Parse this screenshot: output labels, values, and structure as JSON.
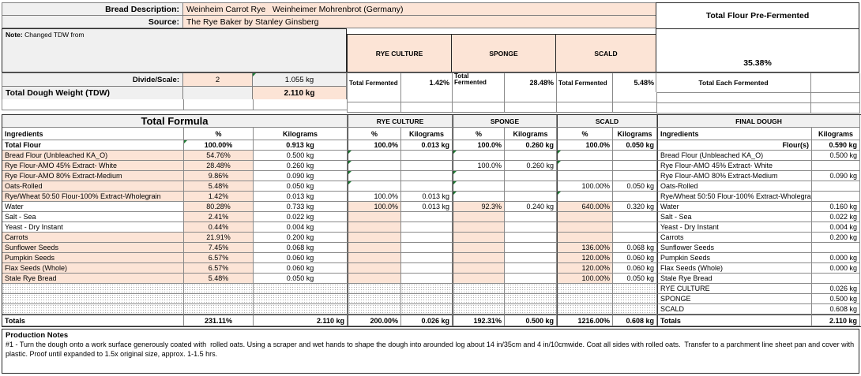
{
  "header": {
    "bread_description_label": "Bread Description:",
    "bread_description": "Weinheim Carrot Rye   Weinheimer Mohrenbrot (Germany)",
    "source_label": "Source:",
    "source": "The Rye Baker by Stanley Ginsberg",
    "note_label": "Note:",
    "note_text": " Changed TDW from",
    "total_flour_prefermented_label": "Total Flour Pre-Fermented",
    "total_flour_prefermented_value": "35.38%",
    "total_each_fermented_label": "Total Each Fermented",
    "divide_scale_label": "Divide/Scale:",
    "divide_scale_value": "2",
    "divide_scale_kg": "1.055 kg",
    "tdw_label": "Total Dough Weight (TDW)",
    "tdw_value": "2.110 kg"
  },
  "sections": {
    "total_formula": "Total Formula",
    "rye_culture": "RYE CULTURE",
    "sponge": "SPONGE",
    "scald": "SCALD",
    "final_dough": "FINAL DOUGH",
    "total_fermented_label": "Total Fermented",
    "rye_total_fermented": "1.42%",
    "sponge_total_fermented": "28.48%",
    "scald_total_fermented": "5.48%"
  },
  "columns": {
    "ingredients": "Ingredients",
    "pct": "%",
    "kilograms": "Kilograms"
  },
  "colors": {
    "input_fill": "#fce4d6",
    "label_fill": "#f0f0f0",
    "marker_green": "#1e7a33"
  },
  "table": {
    "rows": [
      {
        "key": "total-flour",
        "cells": [
          {
            "v": "Total Flour",
            "b": 1
          },
          {
            "v": "100.00%",
            "b": 1,
            "m": 1
          },
          {
            "v": "0.913 kg",
            "b": 1
          },
          {
            "v": "100.0%",
            "b": 1
          },
          {
            "v": "0.013 kg",
            "b": 1
          },
          {
            "v": "100.0%",
            "b": 1
          },
          {
            "v": "0.260 kg",
            "b": 1
          },
          {
            "v": "100.0%",
            "b": 1
          },
          {
            "v": "0.050 kg",
            "b": 1
          },
          {
            "v": "Flour(s)",
            "b": 1,
            "a": "r"
          },
          {
            "v": "0.590 kg",
            "b": 1
          }
        ]
      },
      {
        "key": "bread-flour",
        "cells": [
          {
            "v": "Bread Flour (Unbleached KA_O)",
            "i": 1
          },
          {
            "v": "54.76%",
            "i": 1
          },
          {
            "v": "0.500 kg"
          },
          {
            "m": 1
          },
          {},
          {
            "m": 1
          },
          {},
          {
            "m": 1
          },
          {},
          {
            "v": "Bread Flour (Unbleached KA_O)"
          },
          {
            "v": "0.500 kg"
          }
        ]
      },
      {
        "key": "rye-flour-45",
        "cells": [
          {
            "v": "Rye Flour-AMO 45% Extract- White",
            "i": 1
          },
          {
            "v": "28.48%",
            "i": 1
          },
          {
            "v": "0.260 kg"
          },
          {
            "m": 1
          },
          {},
          {
            "v": "100.0%"
          },
          {
            "v": "0.260 kg"
          },
          {
            "m": 1
          },
          {},
          {
            "v": "Rye Flour-AMO 45% Extract- White"
          },
          {}
        ]
      },
      {
        "key": "rye-flour-80",
        "cells": [
          {
            "v": "Rye Flour-AMO 80% Extract-Medium",
            "i": 1
          },
          {
            "v": "9.86%",
            "i": 1
          },
          {
            "v": "0.090 kg"
          },
          {
            "m": 1
          },
          {},
          {
            "m": 1
          },
          {},
          {},
          {},
          {
            "v": "Rye Flour-AMO 80% Extract-Medium"
          },
          {
            "v": "0.090 kg"
          }
        ]
      },
      {
        "key": "oats-rolled",
        "cells": [
          {
            "v": "Oats-Rolled",
            "i": 1
          },
          {
            "v": "5.48%",
            "i": 1
          },
          {
            "v": "0.050 kg"
          },
          {
            "m": 1
          },
          {},
          {
            "m": 1
          },
          {},
          {
            "v": "100.00%"
          },
          {
            "v": "0.050 kg"
          },
          {
            "v": "Oats-Rolled"
          },
          {}
        ]
      },
      {
        "key": "rye-wheat-5050",
        "cells": [
          {
            "v": "Rye/Wheat 50:50 Flour-100% Extract-Wholegrain",
            "i": 1
          },
          {
            "v": "1.42%",
            "i": 1
          },
          {
            "v": "0.013 kg"
          },
          {
            "v": "100.0%"
          },
          {
            "v": "0.013 kg"
          },
          {
            "m": 1
          },
          {},
          {
            "m": 1
          },
          {},
          {
            "v": "Rye/Wheat 50:50 Flour-100% Extract-Wholegrain"
          },
          {}
        ]
      },
      {
        "key": "water",
        "cells": [
          {
            "v": "Water"
          },
          {
            "v": "80.28%",
            "i": 1
          },
          {
            "v": "0.733 kg"
          },
          {
            "v": "100.0%",
            "i": 1
          },
          {
            "v": "0.013 kg"
          },
          {
            "v": "92.3%",
            "i": 1
          },
          {
            "v": "0.240 kg"
          },
          {
            "v": "640.00%",
            "i": 1
          },
          {
            "v": "0.320 kg"
          },
          {
            "v": "Water"
          },
          {
            "v": "0.160 kg"
          }
        ]
      },
      {
        "key": "salt-sea",
        "cells": [
          {
            "v": "Salt - Sea"
          },
          {
            "v": "2.41%",
            "i": 1
          },
          {
            "v": "0.022 kg"
          },
          {
            "i": 1
          },
          {},
          {
            "i": 1
          },
          {},
          {
            "i": 1
          },
          {},
          {
            "v": "Salt - Sea"
          },
          {
            "v": "0.022 kg"
          }
        ]
      },
      {
        "key": "yeast-dry",
        "cells": [
          {
            "v": "Yeast - Dry Instant"
          },
          {
            "v": "0.44%",
            "i": 1
          },
          {
            "v": "0.004 kg"
          },
          {
            "i": 1
          },
          {},
          {
            "i": 1
          },
          {},
          {
            "i": 1
          },
          {},
          {
            "v": "Yeast - Dry Instant"
          },
          {
            "v": "0.004 kg"
          }
        ]
      },
      {
        "key": "carrots",
        "cells": [
          {
            "v": "Carrots",
            "i": 1
          },
          {
            "v": "21.91%",
            "i": 1
          },
          {
            "v": "0.200 kg"
          },
          {
            "i": 1
          },
          {},
          {
            "i": 1
          },
          {},
          {
            "i": 1
          },
          {},
          {
            "v": "Carrots"
          },
          {
            "v": "0.200 kg"
          }
        ]
      },
      {
        "key": "sunflower-seeds",
        "cells": [
          {
            "v": "Sunflower Seeds",
            "i": 1
          },
          {
            "v": "7.45%",
            "i": 1
          },
          {
            "v": "0.068 kg"
          },
          {
            "i": 1
          },
          {},
          {
            "i": 1
          },
          {},
          {
            "v": "136.00%",
            "i": 1
          },
          {
            "v": "0.068 kg"
          },
          {
            "v": "Sunflower Seeds"
          },
          {}
        ]
      },
      {
        "key": "pumpkin-seeds",
        "cells": [
          {
            "v": "Pumpkin Seeds",
            "i": 1
          },
          {
            "v": "6.57%",
            "i": 1
          },
          {
            "v": "0.060 kg"
          },
          {
            "i": 1
          },
          {},
          {
            "i": 1
          },
          {},
          {
            "v": "120.00%",
            "i": 1
          },
          {
            "v": "0.060 kg"
          },
          {
            "v": "Pumpkin Seeds"
          },
          {
            "v": "0.000 kg"
          }
        ]
      },
      {
        "key": "flax-seeds",
        "cells": [
          {
            "v": "Flax Seeds (Whole)",
            "i": 1
          },
          {
            "v": "6.57%",
            "i": 1
          },
          {
            "v": "0.060 kg"
          },
          {
            "i": 1
          },
          {},
          {
            "i": 1
          },
          {},
          {
            "v": "120.00%",
            "i": 1
          },
          {
            "v": "0.060 kg"
          },
          {
            "v": "Flax Seeds (Whole)"
          },
          {
            "v": "0.000 kg"
          }
        ]
      },
      {
        "key": "stale-rye-bread",
        "cells": [
          {
            "v": "Stale Rye Bread",
            "i": 1
          },
          {
            "v": "5.48%",
            "i": 1
          },
          {
            "v": "0.050 kg"
          },
          {
            "i": 1
          },
          {},
          {
            "i": 1
          },
          {},
          {
            "v": "100.00%",
            "i": 1
          },
          {
            "v": "0.050 kg"
          },
          {
            "v": "Stale Rye Bread"
          },
          {}
        ]
      },
      {
        "key": "preferment-rye-culture",
        "cells": [
          {
            "h": 1
          },
          {
            "h": 1
          },
          {
            "h": 1
          },
          {
            "h": 1
          },
          {
            "h": 1
          },
          {
            "h": 1
          },
          {
            "h": 1
          },
          {
            "h": 1
          },
          {
            "h": 1
          },
          {
            "v": "RYE CULTURE"
          },
          {
            "v": "0.026 kg"
          }
        ]
      },
      {
        "key": "preferment-sponge",
        "cells": [
          {
            "h": 1
          },
          {
            "h": 1
          },
          {
            "h": 1
          },
          {
            "h": 1
          },
          {
            "h": 1
          },
          {
            "h": 1
          },
          {
            "h": 1
          },
          {
            "h": 1
          },
          {
            "h": 1
          },
          {
            "v": "SPONGE"
          },
          {
            "v": "0.500 kg"
          }
        ]
      },
      {
        "key": "preferment-scald",
        "cells": [
          {
            "h": 1
          },
          {
            "h": 1
          },
          {
            "h": 1
          },
          {
            "h": 1
          },
          {
            "h": 1
          },
          {
            "h": 1
          },
          {
            "h": 1
          },
          {
            "h": 1
          },
          {
            "h": 1
          },
          {
            "v": "SCALD"
          },
          {
            "v": "0.608 kg"
          }
        ]
      },
      {
        "key": "totals",
        "totals": 1,
        "cells": [
          {
            "v": "Totals",
            "b": 1
          },
          {
            "v": "231.11%",
            "b": 1
          },
          {
            "v": "2.110 kg",
            "b": 1,
            "a": "r"
          },
          {
            "v": "200.00%",
            "b": 1
          },
          {
            "v": "0.026 kg",
            "b": 1
          },
          {
            "v": "192.31%",
            "b": 1
          },
          {
            "v": "0.500 kg",
            "b": 1
          },
          {
            "v": "1216.00%",
            "b": 1
          },
          {
            "v": "0.608 kg",
            "b": 1
          },
          {
            "v": "Totals",
            "b": 1
          },
          {
            "v": "2.110 kg",
            "b": 1
          }
        ]
      }
    ]
  },
  "notes": {
    "title": "Production Notes",
    "body": "#1 - Turn the dough onto a work surface generously coated with  rolled oats. Using a scraper and wet hands to shape the dough into arounded log about 14 in/35cm and 4 in/10cmwide. Coat all sides with rolled oats.  Transfer to a parchment line sheet pan and cover with plastic. Proof until expanded to 1.5x original size, approx. 1-1.5 hrs."
  }
}
